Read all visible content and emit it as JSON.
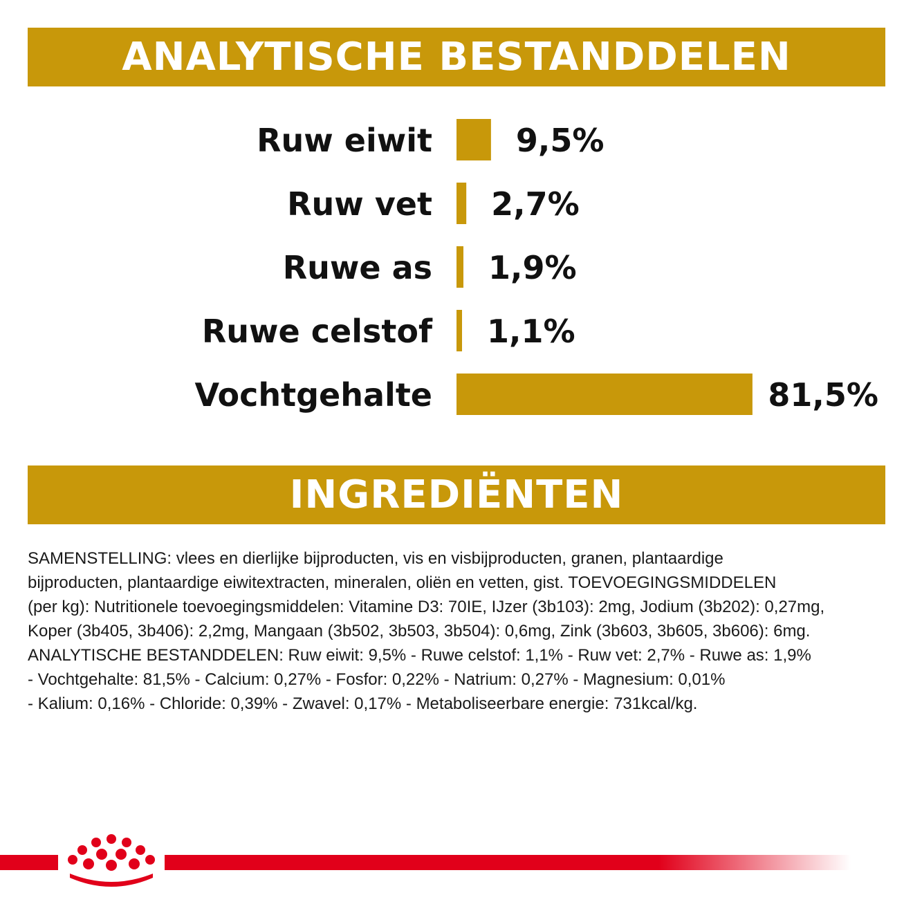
{
  "colors": {
    "accent": "#c8980a",
    "brand_red": "#e1001a",
    "text": "#111111"
  },
  "header": {
    "analytic_title": "ANALYTISCHE BESTANDDELEN",
    "ingredients_title": "INGREDIËNTEN"
  },
  "chart_data": {
    "type": "bar",
    "orientation": "horizontal",
    "categories": [
      "Ruw eiwit",
      "Ruw vet",
      "Ruwe as",
      "Ruwe celstof",
      "Vochtgehalte"
    ],
    "values": [
      9.5,
      2.7,
      1.9,
      1.1,
      81.5
    ],
    "value_labels": [
      "9,5%",
      "2,7%",
      "1,9%",
      "1,1%",
      "81,5%"
    ],
    "unit": "%",
    "grid": false,
    "legend": "none"
  },
  "ingredients": {
    "lines": [
      "SAMENSTELLING: vlees en dierlijke bijproducten, vis en visbijproducten, granen, plantaardige",
      "bijproducten, plantaardige eiwitextracten, mineralen, oliën en vetten, gist. TOEVOEGINGSMIDDELEN",
      "(per kg): Nutritionele toevoegingsmiddelen: Vitamine D3: 70IE, IJzer (3b103): 2mg, Jodium (3b202): 0,27mg,",
      "Koper (3b405, 3b406): 2,2mg, Mangaan (3b502, 3b503, 3b504): 0,6mg, Zink (3b603, 3b605, 3b606): 6mg.",
      "ANALYTISCHE BESTANDDELEN: Ruw eiwit: 9,5% - Ruwe celstof: 1,1% - Ruw vet: 2,7% - Ruwe as: 1,9%",
      "- Vochtgehalte: 81,5% - Calcium: 0,27% - Fosfor: 0,22% - Natrium: 0,27% - Magnesium: 0,01%",
      "- Kalium: 0,16% - Chloride: 0,39% - Zwavel: 0,17% - Metaboliseerbare energie: 731kcal/kg."
    ]
  },
  "footer": {
    "logo_icon": "royal-canin-crown-icon"
  }
}
